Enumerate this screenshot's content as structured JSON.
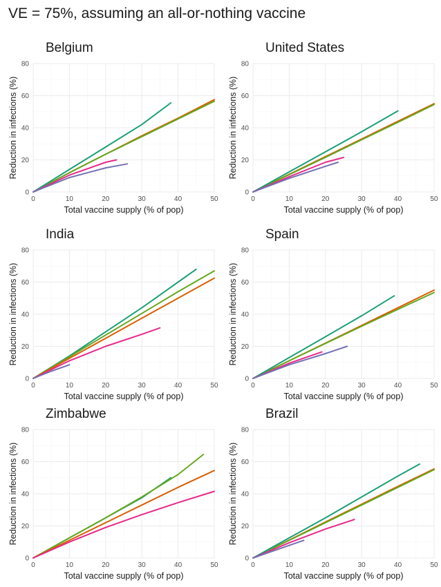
{
  "title": "VE = 75%, assuming an all-or-nothing vaccine",
  "colors": {
    "teal": "#1b9e77",
    "orange": "#d95f02",
    "purple": "#7570b3",
    "magenta": "#e7298a",
    "green": "#66a61e",
    "grid": "#ebebeb",
    "axis_text": "#4d4d4d"
  },
  "chart_data": [
    {
      "type": "line",
      "title": "Belgium",
      "xlabel": "Total vaccine supply (% of pop)",
      "ylabel": "Reduction in infections (%)",
      "xlim": [
        0,
        50
      ],
      "ylim": [
        0,
        80
      ],
      "xticks": [
        0,
        10,
        20,
        30,
        40,
        50
      ],
      "yticks": [
        0,
        20,
        40,
        60,
        80
      ],
      "grid": true,
      "series": [
        {
          "color": "#d95f02",
          "x": [
            0,
            10,
            20,
            30,
            40,
            50
          ],
          "y": [
            0,
            12,
            23.5,
            35,
            46,
            57.5
          ]
        },
        {
          "color": "#66a61e",
          "x": [
            0,
            10,
            20,
            30,
            40,
            50
          ],
          "y": [
            0,
            12,
            23.5,
            34.5,
            45.5,
            56.5
          ]
        },
        {
          "color": "#1b9e77",
          "x": [
            0,
            10,
            20,
            30,
            38
          ],
          "y": [
            0,
            14,
            28,
            42,
            55.5
          ]
        },
        {
          "color": "#e7298a",
          "x": [
            0,
            10,
            20,
            23
          ],
          "y": [
            0,
            10.5,
            18.5,
            20
          ]
        },
        {
          "color": "#7570b3",
          "x": [
            0,
            10,
            20,
            26
          ],
          "y": [
            0,
            9,
            15,
            17.5
          ]
        }
      ]
    },
    {
      "type": "line",
      "title": "United States",
      "xlabel": "Total vaccine supply (% of pop)",
      "ylabel": "Reduction in infections (%)",
      "xlim": [
        0,
        50
      ],
      "ylim": [
        0,
        80
      ],
      "xticks": [
        0,
        10,
        20,
        30,
        40,
        50
      ],
      "yticks": [
        0,
        20,
        40,
        60,
        80
      ],
      "grid": true,
      "series": [
        {
          "color": "#d95f02",
          "x": [
            0,
            10,
            20,
            30,
            40,
            50
          ],
          "y": [
            0,
            11,
            22,
            33,
            44,
            55
          ]
        },
        {
          "color": "#66a61e",
          "x": [
            0,
            10,
            20,
            30,
            40,
            50
          ],
          "y": [
            0,
            10.8,
            21.6,
            32.5,
            43.4,
            54.5
          ]
        },
        {
          "color": "#1b9e77",
          "x": [
            0,
            10,
            20,
            30,
            40
          ],
          "y": [
            0,
            12.5,
            25,
            37.5,
            50.5
          ]
        },
        {
          "color": "#e7298a",
          "x": [
            0,
            10,
            20,
            25
          ],
          "y": [
            0,
            9.5,
            18.5,
            21.5
          ]
        },
        {
          "color": "#7570b3",
          "x": [
            0,
            10,
            20,
            23.5
          ],
          "y": [
            0,
            8.5,
            16,
            18.5
          ]
        }
      ]
    },
    {
      "type": "line",
      "title": "India",
      "xlabel": "Total vaccine supply (% of pop)",
      "ylabel": "Reduction in infections (%)",
      "xlim": [
        0,
        50
      ],
      "ylim": [
        0,
        80
      ],
      "xticks": [
        0,
        10,
        20,
        30,
        40,
        50
      ],
      "yticks": [
        0,
        20,
        40,
        60,
        80
      ],
      "grid": true,
      "series": [
        {
          "color": "#1b9e77",
          "x": [
            0,
            10,
            20,
            30,
            40,
            45
          ],
          "y": [
            0,
            14,
            29,
            44,
            60,
            68
          ]
        },
        {
          "color": "#66a61e",
          "x": [
            0,
            10,
            20,
            30,
            40,
            50
          ],
          "y": [
            0,
            13.5,
            27,
            40.5,
            54,
            67
          ]
        },
        {
          "color": "#d95f02",
          "x": [
            0,
            10,
            20,
            30,
            40,
            50
          ],
          "y": [
            0,
            12.5,
            25,
            37.5,
            50,
            62.5
          ]
        },
        {
          "color": "#e7298a",
          "x": [
            0,
            10,
            20,
            30,
            35
          ],
          "y": [
            0,
            11,
            20,
            27.5,
            31.5
          ]
        },
        {
          "color": "#7570b3",
          "x": [
            0,
            5,
            10
          ],
          "y": [
            0,
            4.5,
            8.5
          ]
        }
      ]
    },
    {
      "type": "line",
      "title": "Spain",
      "xlabel": "Total vaccine supply (% of pop)",
      "ylabel": "Reduction in infections (%)",
      "xlim": [
        0,
        50
      ],
      "ylim": [
        0,
        80
      ],
      "xticks": [
        0,
        10,
        20,
        30,
        40,
        50
      ],
      "yticks": [
        0,
        20,
        40,
        60,
        80
      ],
      "grid": true,
      "series": [
        {
          "color": "#d95f02",
          "x": [
            0,
            10,
            20,
            30,
            40,
            50
          ],
          "y": [
            0,
            11,
            22,
            33,
            44,
            55
          ]
        },
        {
          "color": "#66a61e",
          "x": [
            0,
            10,
            20,
            30,
            40,
            50
          ],
          "y": [
            0,
            11,
            21.8,
            32.5,
            43,
            53.5
          ]
        },
        {
          "color": "#1b9e77",
          "x": [
            0,
            10,
            20,
            30,
            39
          ],
          "y": [
            0,
            13,
            26,
            39,
            51.5
          ]
        },
        {
          "color": "#e7298a",
          "x": [
            0,
            10,
            19
          ],
          "y": [
            0,
            9.5,
            16.5
          ]
        },
        {
          "color": "#7570b3",
          "x": [
            0,
            10,
            20,
            26
          ],
          "y": [
            0,
            8.5,
            15.5,
            20
          ]
        }
      ]
    },
    {
      "type": "line",
      "title": "Zimbabwe",
      "xlabel": "Total vaccine supply (% of pop)",
      "ylabel": "Reduction in infections (%)",
      "xlim": [
        0,
        50
      ],
      "ylim": [
        0,
        80
      ],
      "xticks": [
        0,
        10,
        20,
        30,
        40,
        50
      ],
      "yticks": [
        0,
        20,
        40,
        60,
        80
      ],
      "grid": true,
      "series": [
        {
          "color": "#1b9e77",
          "x": [
            0,
            10,
            20,
            30,
            38
          ],
          "y": [
            0,
            12.5,
            25,
            37.5,
            50
          ]
        },
        {
          "color": "#66a61e",
          "x": [
            0,
            10,
            20,
            30,
            40,
            47
          ],
          "y": [
            0,
            12.5,
            25,
            38,
            52,
            64.5
          ]
        },
        {
          "color": "#d95f02",
          "x": [
            0,
            10,
            20,
            30,
            40,
            50
          ],
          "y": [
            0,
            11,
            22,
            33,
            44,
            54.5
          ]
        },
        {
          "color": "#e7298a",
          "x": [
            0,
            10,
            20,
            30,
            40,
            50
          ],
          "y": [
            0,
            10,
            19,
            27,
            34.5,
            41.5
          ]
        }
      ]
    },
    {
      "type": "line",
      "title": "Brazil",
      "xlabel": "Total vaccine supply (% of pop)",
      "ylabel": "Reduction in infections (%)",
      "xlim": [
        0,
        50
      ],
      "ylim": [
        0,
        80
      ],
      "xticks": [
        0,
        10,
        20,
        30,
        40,
        50
      ],
      "yticks": [
        0,
        20,
        40,
        60,
        80
      ],
      "grid": true,
      "series": [
        {
          "color": "#d95f02",
          "x": [
            0,
            10,
            20,
            30,
            40,
            50
          ],
          "y": [
            0,
            11.2,
            22.4,
            33.5,
            44.6,
            55.5
          ]
        },
        {
          "color": "#66a61e",
          "x": [
            0,
            10,
            20,
            30,
            40,
            50
          ],
          "y": [
            0,
            11,
            22,
            33,
            44,
            55
          ]
        },
        {
          "color": "#1b9e77",
          "x": [
            0,
            10,
            20,
            30,
            40,
            46
          ],
          "y": [
            0,
            12.5,
            25,
            38,
            51,
            58.5
          ]
        },
        {
          "color": "#e7298a",
          "x": [
            0,
            10,
            20,
            28
          ],
          "y": [
            0,
            9.5,
            18,
            24
          ]
        },
        {
          "color": "#7570b3",
          "x": [
            0,
            7,
            14
          ],
          "y": [
            0,
            5.5,
            11
          ]
        }
      ]
    }
  ]
}
